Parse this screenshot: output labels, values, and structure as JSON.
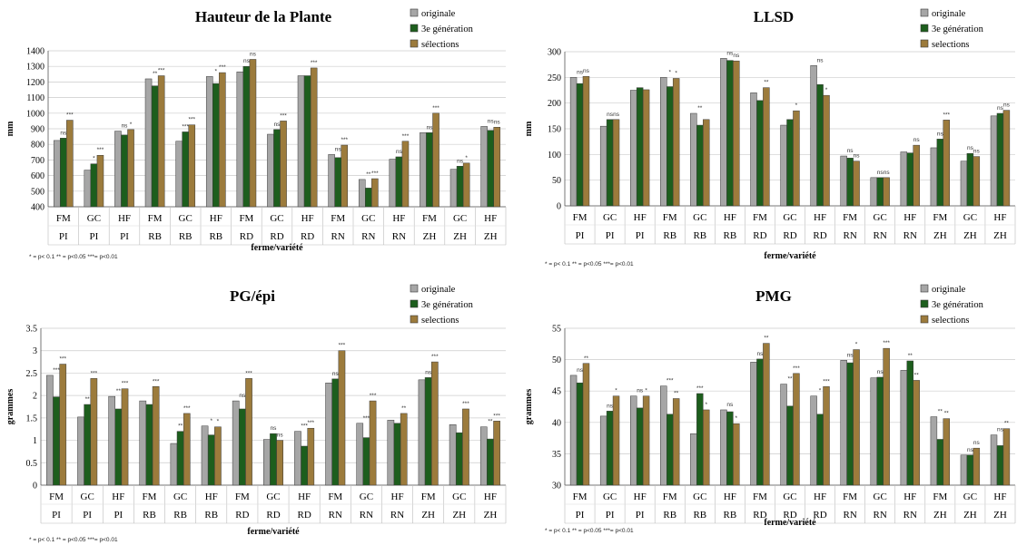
{
  "colors": {
    "originale": "#a6a6a6",
    "generation": "#1d5e1d",
    "selections": "#9c7b3c",
    "outline": "#3a3a3a",
    "grid": "#cccccc"
  },
  "categories_top": [
    "FM",
    "GC",
    "HF",
    "FM",
    "GC",
    "HF",
    "FM",
    "GC",
    "HF",
    "FM",
    "GC",
    "HF",
    "FM",
    "GC",
    "HF"
  ],
  "categories_bottom": [
    "PI",
    "PI",
    "PI",
    "RB",
    "RB",
    "RB",
    "RD",
    "RD",
    "RD",
    "RN",
    "RN",
    "RN",
    "ZH",
    "ZH",
    "ZH"
  ],
  "chart_data": [
    {
      "type": "bar",
      "title": "Hauteur de la Plante",
      "ylabel": "mm",
      "xlabel": "ferme/variété",
      "ylim": [
        400,
        1400
      ],
      "yticks": [
        "400",
        "500",
        "600",
        "700",
        "800",
        "900",
        "1000",
        "1100",
        "1200",
        "1300",
        "1400"
      ],
      "legend": [
        "originale",
        "3e génération",
        "sélections"
      ],
      "footnote": "* = p< 0.1    ** = p<0.05 ***= p<0.01",
      "series": [
        {
          "name": "originale",
          "values": [
            825,
            635,
            885,
            1220,
            820,
            1235,
            1265,
            865,
            1240,
            735,
            575,
            705,
            875,
            640,
            915
          ]
        },
        {
          "name": "3e génération",
          "values": [
            840,
            675,
            860,
            1175,
            880,
            1190,
            1300,
            895,
            1240,
            715,
            520,
            720,
            875,
            660,
            890
          ]
        },
        {
          "name": "sélections",
          "values": [
            955,
            730,
            895,
            1240,
            925,
            1260,
            1345,
            950,
            1290,
            795,
            580,
            820,
            1000,
            680,
            910
          ]
        }
      ],
      "significance": [
        [
          "ns",
          "***"
        ],
        [
          "*",
          "***"
        ],
        [
          "ns",
          "*"
        ],
        [
          "**",
          "***"
        ],
        [
          "***",
          "***"
        ],
        [
          "*",
          "***"
        ],
        [
          "ns",
          "ns"
        ],
        [
          "ns",
          "***"
        ],
        [
          "",
          "***"
        ],
        [
          "ns",
          "***"
        ],
        [
          "**",
          "***"
        ],
        [
          "ns",
          "***"
        ],
        [
          "ns",
          "***"
        ],
        [
          "ns",
          "*"
        ],
        [
          "ns",
          "ns"
        ]
      ]
    },
    {
      "type": "bar",
      "title": "LLSD",
      "ylabel": "mm",
      "xlabel": "ferme/variété",
      "ylim": [
        0,
        300
      ],
      "yticks": [
        "0",
        "50",
        "100",
        "150",
        "200",
        "250",
        "300"
      ],
      "legend": [
        "originale",
        "3e génération",
        "selections"
      ],
      "footnote": "* = p< 0.1    ** = p<0.05 ***= p<0.01",
      "series": [
        {
          "name": "originale",
          "values": [
            250,
            155,
            225,
            250,
            180,
            287,
            220,
            157,
            273,
            97,
            55,
            105,
            113,
            87,
            175
          ]
        },
        {
          "name": "3e génération",
          "values": [
            238,
            168,
            230,
            232,
            157,
            283,
            205,
            168,
            236,
            93,
            55,
            103,
            130,
            102,
            180
          ]
        },
        {
          "name": "selections",
          "values": [
            252,
            168,
            226,
            248,
            168,
            282,
            230,
            185,
            215,
            87,
            55,
            118,
            167,
            96,
            186
          ]
        }
      ],
      "significance": [
        [
          "ns",
          "ns"
        ],
        [
          "ns",
          "ns"
        ],
        [
          "",
          ""
        ],
        [
          "*",
          "*"
        ],
        [
          "**",
          ""
        ],
        [
          "ns",
          "ns"
        ],
        [
          "",
          "**"
        ],
        [
          "",
          "*"
        ],
        [
          "ns",
          "*"
        ],
        [
          "ns",
          "ns"
        ],
        [
          "ns",
          "ns"
        ],
        [
          "",
          "ns"
        ],
        [
          "ns",
          "***"
        ],
        [
          "ns",
          "ns"
        ],
        [
          "ns",
          "ns"
        ]
      ]
    },
    {
      "type": "bar",
      "title": "PG/épi",
      "ylabel": "grammes",
      "xlabel": "ferme/variété",
      "ylim": [
        0,
        3.5
      ],
      "yticks": [
        "0",
        "0.5",
        "1",
        "1.5",
        "2",
        "2.5",
        "3",
        "3.5"
      ],
      "legend": [
        "originale",
        "3e génération",
        "selections"
      ],
      "footnote": "* = p< 0.1    ** = p<0.05 ***= p<0.01",
      "series": [
        {
          "name": "originale",
          "values": [
            2.45,
            1.52,
            1.98,
            1.88,
            0.93,
            1.32,
            1.88,
            1.02,
            1.2,
            2.28,
            1.38,
            1.45,
            2.35,
            1.35,
            1.3
          ]
        },
        {
          "name": "3e génération",
          "values": [
            1.97,
            1.8,
            1.7,
            1.8,
            1.2,
            1.12,
            1.7,
            1.15,
            0.87,
            2.37,
            1.06,
            1.38,
            2.4,
            1.17,
            1.03
          ]
        },
        {
          "name": "selections",
          "values": [
            2.7,
            2.38,
            2.15,
            2.2,
            1.6,
            1.3,
            2.38,
            1.0,
            1.27,
            3.0,
            1.88,
            1.6,
            2.75,
            1.7,
            1.43
          ]
        }
      ],
      "significance": [
        [
          "***",
          "***"
        ],
        [
          "**",
          "***"
        ],
        [
          "**",
          "***"
        ],
        [
          "",
          "***"
        ],
        [
          "**",
          "***"
        ],
        [
          "*",
          "*"
        ],
        [
          "ns",
          "***"
        ],
        [
          "ns",
          "ns"
        ],
        [
          "***",
          "***"
        ],
        [
          "ns",
          "***"
        ],
        [
          "***",
          "***"
        ],
        [
          "",
          "**"
        ],
        [
          "ns",
          "***"
        ],
        [
          "",
          "***"
        ],
        [
          "**",
          "***"
        ]
      ]
    },
    {
      "type": "bar",
      "title": "PMG",
      "ylabel": "grammes",
      "xlabel": "ferme/variété",
      "ylim": [
        30,
        55
      ],
      "yticks": [
        "30",
        "35",
        "40",
        "45",
        "50",
        "55"
      ],
      "legend": [
        "originale",
        "3e génération",
        "selections"
      ],
      "footnote": "* = p< 0.1    ** = p<0.05 ***= p<0.01",
      "series": [
        {
          "name": "originale",
          "values": [
            47.5,
            41.0,
            44.2,
            45.8,
            38.2,
            42.0,
            49.6,
            46.1,
            44.2,
            49.9,
            47.1,
            48.3,
            40.9,
            34.8,
            38.0
          ]
        },
        {
          "name": "3e génération",
          "values": [
            46.3,
            41.8,
            42.3,
            41.3,
            44.6,
            41.7,
            50.1,
            42.6,
            41.3,
            49.5,
            47.2,
            49.8,
            37.3,
            34.8,
            36.3
          ]
        },
        {
          "name": "selections",
          "values": [
            49.4,
            44.2,
            44.2,
            43.8,
            42.0,
            39.8,
            52.6,
            47.8,
            45.7,
            51.6,
            51.8,
            46.7,
            40.6,
            35.9,
            39.0
          ]
        }
      ],
      "significance": [
        [
          "ns",
          "**"
        ],
        [
          "ns",
          "*"
        ],
        [
          "ns",
          "*"
        ],
        [
          "***",
          "**"
        ],
        [
          "***",
          "*"
        ],
        [
          "ns",
          "*"
        ],
        [
          "ns",
          "**"
        ],
        [
          "**",
          "***"
        ],
        [
          "*",
          "***"
        ],
        [
          "ns",
          "*"
        ],
        [
          "ns",
          "***"
        ],
        [
          "**",
          "**"
        ],
        [
          "**",
          "**"
        ],
        [
          "ns",
          "ns"
        ],
        [
          "ns",
          "**"
        ]
      ]
    }
  ]
}
